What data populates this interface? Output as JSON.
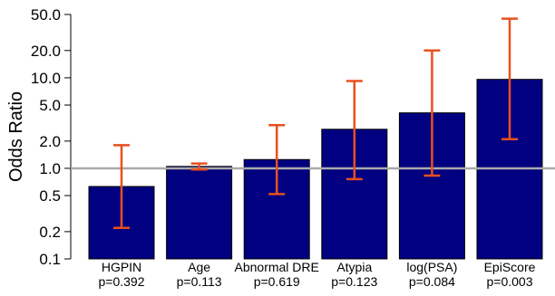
{
  "chart_data": {
    "type": "bar",
    "title": "",
    "xlabel": "",
    "ylabel": "Odds Ratio",
    "yscale": "log",
    "ylim": [
      0.1,
      50
    ],
    "yticks": [
      0.1,
      0.2,
      0.5,
      1.0,
      2.0,
      5.0,
      10.0,
      20.0,
      50.0
    ],
    "ytick_labels": [
      "0.1",
      "0.2",
      "0.5",
      "1.0",
      "2.0",
      "5.0",
      "10.0",
      "20.0",
      "50.0"
    ],
    "reference_line": 1.0,
    "categories": [
      "HGPIN",
      "Age",
      "Abnormal DRE",
      "Atypia",
      "log(PSA)",
      "EpiScore"
    ],
    "pvalues": [
      "p=0.392",
      "p=0.113",
      "p=0.619",
      "p=0.123",
      "p=0.084",
      "p=0.003"
    ],
    "values": [
      0.63,
      1.05,
      1.25,
      2.7,
      4.1,
      9.6
    ],
    "ci_lower": [
      0.22,
      0.97,
      0.52,
      0.76,
      0.83,
      2.1
    ],
    "ci_upper": [
      1.8,
      1.13,
      3.0,
      9.2,
      20.0,
      45.0
    ],
    "grid": false,
    "legend": "none",
    "colors": {
      "bar_fill": "#000080",
      "bar_stroke": "#000000",
      "error_bar": "#e8501e",
      "reference_line": "#aaaaaa",
      "axis": "#000000"
    }
  }
}
